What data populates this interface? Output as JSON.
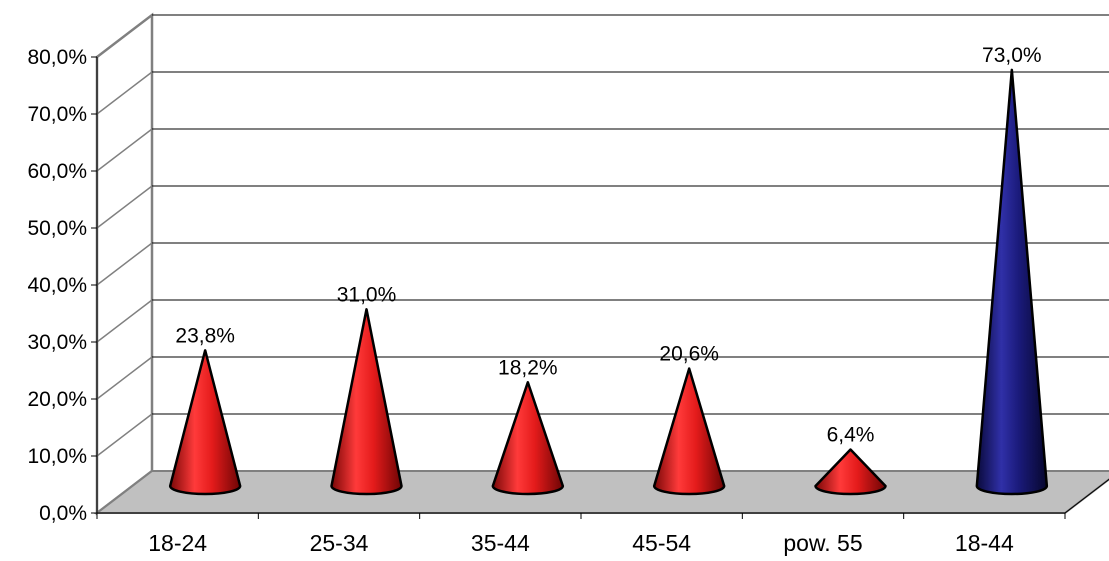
{
  "chart_data": {
    "type": "bar",
    "shape": "cone",
    "categories": [
      "18-24",
      "25-34",
      "35-44",
      "45-54",
      "pow. 55",
      "18-44"
    ],
    "values": [
      23.8,
      31.0,
      18.2,
      20.6,
      6.4,
      73.0
    ],
    "data_labels": [
      "23,8%",
      "31,0%",
      "18,2%",
      "20,6%",
      "6,4%",
      "73,0%"
    ],
    "y_ticks": [
      "0,0%",
      "10,0%",
      "20,0%",
      "30,0%",
      "40,0%",
      "50,0%",
      "60,0%",
      "70,0%",
      "80,0%"
    ],
    "ylim": [
      0,
      80
    ],
    "grid": true,
    "colors": [
      "#e41b1b",
      "#e41b1b",
      "#e41b1b",
      "#e41b1b",
      "#e41b1b",
      "#1a1a7a"
    ],
    "floor_color": "#c0c0c0",
    "title": "",
    "xlabel": "",
    "ylabel": ""
  }
}
